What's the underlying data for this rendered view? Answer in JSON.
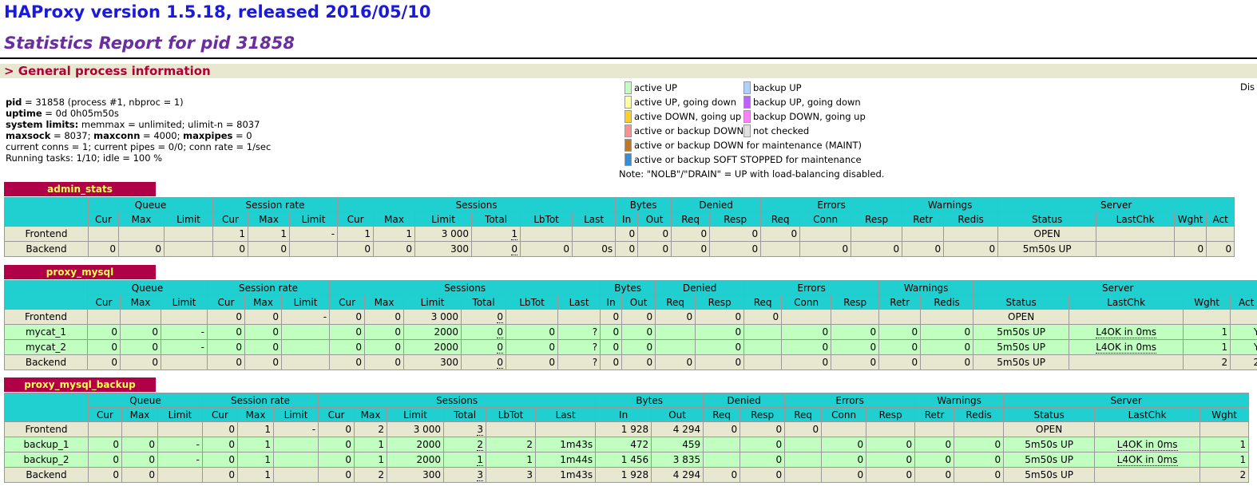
{
  "header": {
    "title": "HAProxy version 1.5.18, released 2016/05/10",
    "subtitle": "Statistics Report for pid 31858"
  },
  "general": {
    "heading": "> General process information",
    "info": [
      [
        {
          "text": "pid",
          "bold": true
        },
        {
          "text": " = 31858 (process #1, nbproc = 1)",
          "bold": false
        }
      ],
      [
        {
          "text": "uptime",
          "bold": true
        },
        {
          "text": " = 0d 0h05m50s",
          "bold": false
        }
      ],
      [
        {
          "text": "system limits:",
          "bold": true
        },
        {
          "text": " memmax = unlimited; ulimit-n = 8037",
          "bold": false
        }
      ],
      [
        {
          "text": "maxsock",
          "bold": true
        },
        {
          "text": " = 8037; ",
          "bold": false
        },
        {
          "text": "maxconn",
          "bold": true
        },
        {
          "text": " = 4000; ",
          "bold": false
        },
        {
          "text": "maxpipes",
          "bold": true
        },
        {
          "text": " = 0",
          "bold": false
        }
      ],
      [
        {
          "text": "current conns = 1; current pipes = 0/0; conn rate = 1/sec",
          "bold": false
        }
      ],
      [
        {
          "text": "Running tasks: 1/10; idle = 100 %",
          "bold": false
        }
      ]
    ],
    "legend": {
      "left": [
        {
          "label": "active UP",
          "color": "#c0ffc0"
        },
        {
          "label": "active UP, going down",
          "color": "#ffffa0"
        },
        {
          "label": "active DOWN, going up",
          "color": "#ffd020"
        },
        {
          "label": "active or backup DOWN",
          "color": "#ff9090"
        },
        {
          "label": "active or backup DOWN for maintenance (MAINT)",
          "color": "#c07820"
        },
        {
          "label": "active or backup SOFT STOPPED for maintenance",
          "color": "#3090e0"
        }
      ],
      "right": [
        {
          "label": "backup UP",
          "color": "#b0d0ff"
        },
        {
          "label": "backup UP, going down",
          "color": "#c060ff"
        },
        {
          "label": "backup DOWN, going up",
          "color": "#ff80ff"
        },
        {
          "label": "not checked",
          "color": "#e0e0e0"
        }
      ],
      "note": "Note: \"NOLB\"/\"DRAIN\" = UP with load-balancing disabled."
    },
    "display_options": "Dis"
  },
  "proxies": [
    {
      "name": "admin_stats",
      "groups": [
        {
          "name": "Queue",
          "columns": [
            "Cur",
            "Max",
            "Limit"
          ]
        },
        {
          "name": "Session rate",
          "columns": [
            "Cur",
            "Max",
            "Limit"
          ]
        },
        {
          "name": "Sessions",
          "columns": [
            "Cur",
            "Max",
            "Limit",
            "Total",
            "LbTot",
            "Last"
          ]
        },
        {
          "name": "Bytes",
          "columns": [
            "In",
            "Out"
          ]
        },
        {
          "name": "Denied",
          "columns": [
            "Req",
            "Resp"
          ]
        },
        {
          "name": "Errors",
          "columns": [
            "Req",
            "Conn",
            "Resp"
          ]
        },
        {
          "name": "Warnings",
          "columns": [
            "Retr",
            "Redis"
          ]
        },
        {
          "name": "Server",
          "columns": [
            "Status",
            "LastChk",
            "Wght",
            "Act"
          ]
        }
      ],
      "rows": [
        {
          "kind": "frontend",
          "name": "Frontend",
          "cells": [
            null,
            null,
            null,
            1,
            1,
            "-",
            1,
            1,
            "3 000",
            1,
            null,
            null,
            0,
            0,
            0,
            0,
            0,
            null,
            null,
            null,
            null,
            "OPEN",
            null,
            null,
            null
          ]
        },
        {
          "kind": "backend",
          "name": "Backend",
          "cells": [
            0,
            0,
            null,
            0,
            0,
            null,
            0,
            0,
            300,
            0,
            0,
            "0s",
            0,
            0,
            0,
            0,
            null,
            0,
            0,
            0,
            0,
            "5m50s UP",
            null,
            0,
            0
          ]
        }
      ]
    },
    {
      "name": "proxy_mysql",
      "groups": [
        {
          "name": "Queue",
          "columns": [
            "Cur",
            "Max",
            "Limit"
          ]
        },
        {
          "name": "Session rate",
          "columns": [
            "Cur",
            "Max",
            "Limit"
          ]
        },
        {
          "name": "Sessions",
          "columns": [
            "Cur",
            "Max",
            "Limit",
            "Total",
            "LbTot",
            "Last"
          ]
        },
        {
          "name": "Bytes",
          "columns": [
            "In",
            "Out"
          ]
        },
        {
          "name": "Denied",
          "columns": [
            "Req",
            "Resp"
          ]
        },
        {
          "name": "Errors",
          "columns": [
            "Req",
            "Conn",
            "Resp"
          ]
        },
        {
          "name": "Warnings",
          "columns": [
            "Retr",
            "Redis"
          ]
        },
        {
          "name": "Server",
          "columns": [
            "Status",
            "LastChk",
            "Wght",
            "Act"
          ]
        }
      ],
      "rows": [
        {
          "kind": "frontend",
          "name": "Frontend",
          "cells": [
            null,
            null,
            null,
            0,
            0,
            "-",
            0,
            0,
            "3 000",
            0,
            null,
            null,
            0,
            0,
            0,
            0,
            0,
            null,
            null,
            null,
            null,
            "OPEN",
            null,
            null,
            null
          ]
        },
        {
          "kind": "server",
          "name": "mycat_1",
          "cells": [
            0,
            0,
            "-",
            0,
            0,
            null,
            0,
            0,
            2000,
            0,
            0,
            "?",
            0,
            0,
            null,
            0,
            null,
            0,
            0,
            0,
            0,
            "5m50s UP",
            "L4OK in 0ms",
            1,
            "Y"
          ]
        },
        {
          "kind": "server",
          "name": "mycat_2",
          "cells": [
            0,
            0,
            "-",
            0,
            0,
            null,
            0,
            0,
            2000,
            0,
            0,
            "?",
            0,
            0,
            null,
            0,
            null,
            0,
            0,
            0,
            0,
            "5m50s UP",
            "L4OK in 0ms",
            1,
            "Y"
          ]
        },
        {
          "kind": "backend",
          "name": "Backend",
          "cells": [
            0,
            0,
            null,
            0,
            0,
            null,
            0,
            0,
            300,
            0,
            0,
            "?",
            0,
            0,
            0,
            0,
            null,
            0,
            0,
            0,
            0,
            "5m50s UP",
            null,
            2,
            2
          ]
        }
      ]
    },
    {
      "name": "proxy_mysql_backup",
      "groups": [
        {
          "name": "Queue",
          "columns": [
            "Cur",
            "Max",
            "Limit"
          ]
        },
        {
          "name": "Session rate",
          "columns": [
            "Cur",
            "Max",
            "Limit"
          ]
        },
        {
          "name": "Sessions",
          "columns": [
            "Cur",
            "Max",
            "Limit",
            "Total",
            "LbTot",
            "Last"
          ]
        },
        {
          "name": "Bytes",
          "columns": [
            "In",
            "Out"
          ]
        },
        {
          "name": "Denied",
          "columns": [
            "Req",
            "Resp"
          ]
        },
        {
          "name": "Errors",
          "columns": [
            "Req",
            "Conn",
            "Resp"
          ]
        },
        {
          "name": "Warnings",
          "columns": [
            "Retr",
            "Redis"
          ]
        },
        {
          "name": "Server",
          "columns": [
            "Status",
            "LastChk",
            "Wght"
          ]
        }
      ],
      "rows": [
        {
          "kind": "frontend",
          "name": "Frontend",
          "cells": [
            null,
            null,
            null,
            0,
            1,
            "-",
            0,
            2,
            "3 000",
            3,
            null,
            null,
            "1 928",
            "4 294",
            0,
            0,
            0,
            null,
            null,
            null,
            null,
            "OPEN",
            null,
            null
          ]
        },
        {
          "kind": "server",
          "name": "backup_1",
          "cells": [
            0,
            0,
            "-",
            0,
            1,
            null,
            0,
            1,
            2000,
            2,
            2,
            "1m43s",
            472,
            459,
            null,
            0,
            null,
            0,
            0,
            0,
            0,
            "5m50s UP",
            "L4OK in 0ms",
            1
          ]
        },
        {
          "kind": "server",
          "name": "backup_2",
          "cells": [
            0,
            0,
            "-",
            0,
            1,
            null,
            0,
            1,
            2000,
            1,
            1,
            "1m44s",
            "1 456",
            "3 835",
            null,
            0,
            null,
            0,
            0,
            0,
            0,
            "5m50s UP",
            "L4OK in 0ms",
            1
          ]
        },
        {
          "kind": "backend",
          "name": "Backend",
          "cells": [
            0,
            0,
            null,
            0,
            1,
            null,
            0,
            2,
            300,
            3,
            3,
            "1m43s",
            "1 928",
            "4 294",
            0,
            0,
            null,
            0,
            0,
            0,
            0,
            "5m50s UP",
            null,
            2
          ]
        }
      ]
    }
  ]
}
